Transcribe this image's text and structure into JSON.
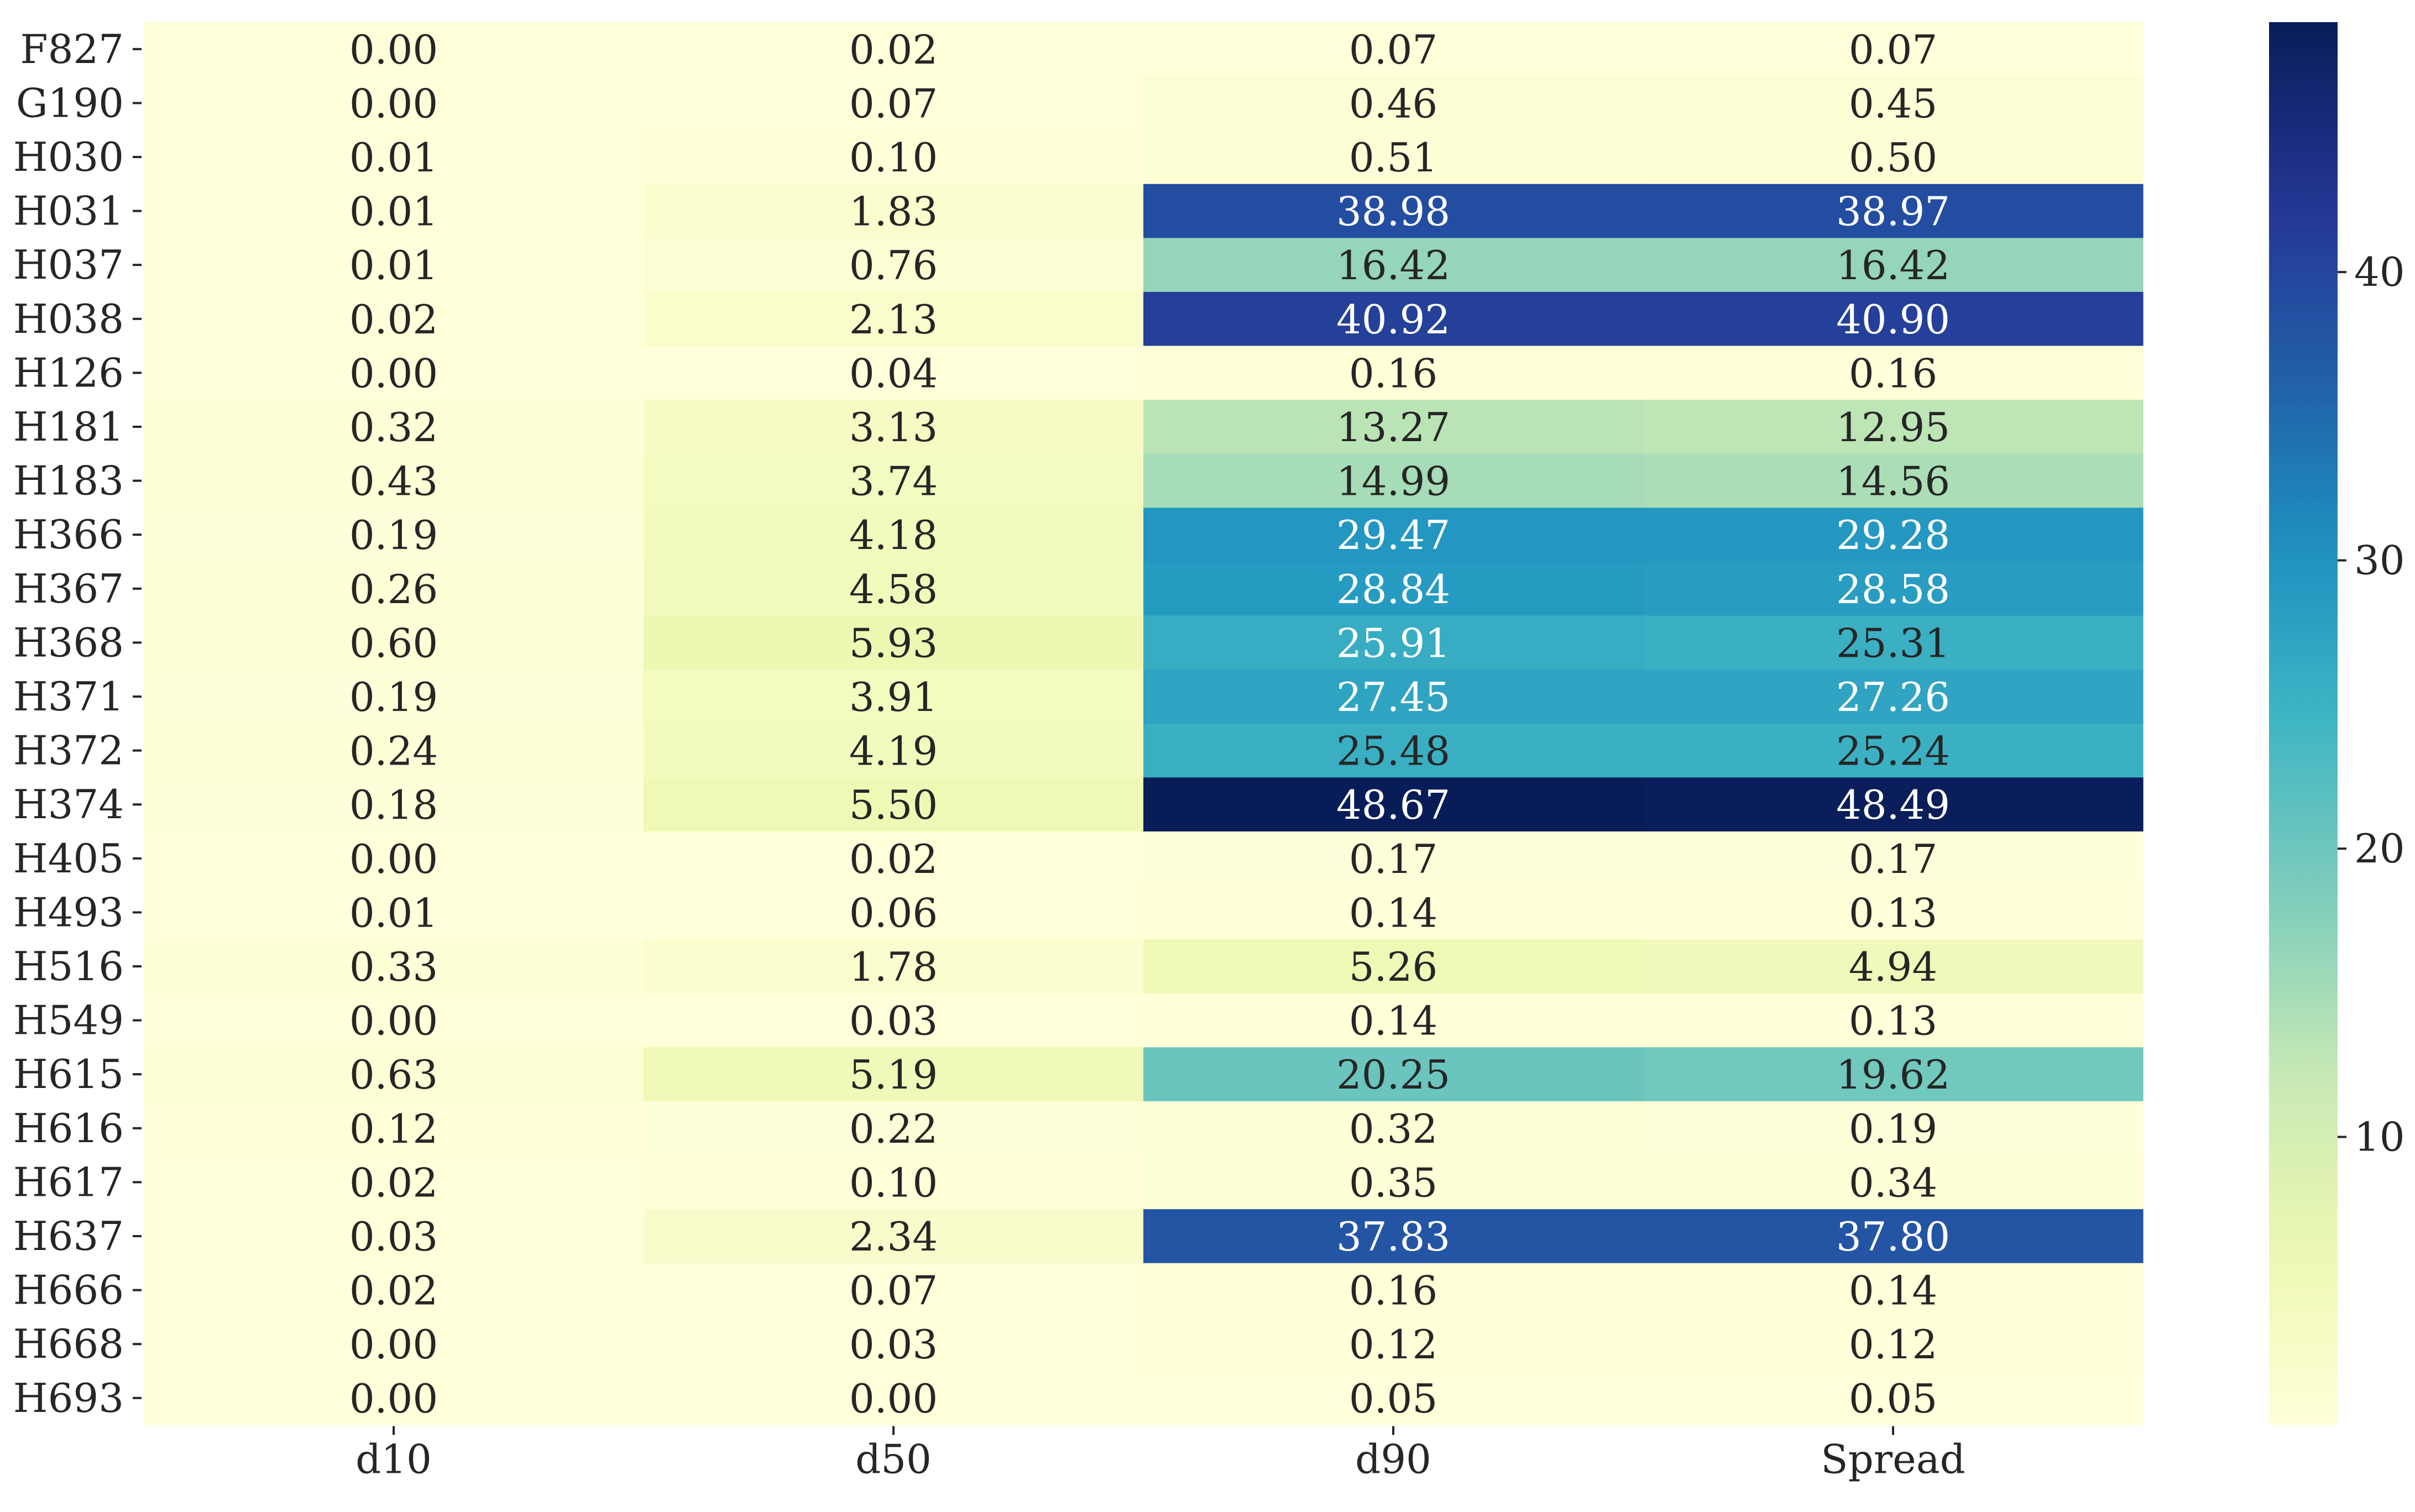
{
  "chart_data": {
    "type": "heatmap",
    "title": "",
    "xlabel": "",
    "ylabel": "",
    "columns": [
      "d10",
      "d50",
      "d90",
      "Spread"
    ],
    "rows": [
      "F827",
      "G190",
      "H030",
      "H031",
      "H037",
      "H038",
      "H126",
      "H181",
      "H183",
      "H366",
      "H367",
      "H368",
      "H371",
      "H372",
      "H374",
      "H405",
      "H493",
      "H516",
      "H549",
      "H615",
      "H616",
      "H617",
      "H637",
      "H666",
      "H668",
      "H693"
    ],
    "values": [
      [
        0.0,
        0.02,
        0.07,
        0.07
      ],
      [
        0.0,
        0.07,
        0.46,
        0.45
      ],
      [
        0.01,
        0.1,
        0.51,
        0.5
      ],
      [
        0.01,
        1.83,
        38.98,
        38.97
      ],
      [
        0.01,
        0.76,
        16.42,
        16.42
      ],
      [
        0.02,
        2.13,
        40.92,
        40.9
      ],
      [
        0.0,
        0.04,
        0.16,
        0.16
      ],
      [
        0.32,
        3.13,
        13.27,
        12.95
      ],
      [
        0.43,
        3.74,
        14.99,
        14.56
      ],
      [
        0.19,
        4.18,
        29.47,
        29.28
      ],
      [
        0.26,
        4.58,
        28.84,
        28.58
      ],
      [
        0.6,
        5.93,
        25.91,
        25.31
      ],
      [
        0.19,
        3.91,
        27.45,
        27.26
      ],
      [
        0.24,
        4.19,
        25.48,
        25.24
      ],
      [
        0.18,
        5.5,
        48.67,
        48.49
      ],
      [
        0.0,
        0.02,
        0.17,
        0.17
      ],
      [
        0.01,
        0.06,
        0.14,
        0.13
      ],
      [
        0.33,
        1.78,
        5.26,
        4.94
      ],
      [
        0.0,
        0.03,
        0.14,
        0.13
      ],
      [
        0.63,
        5.19,
        20.25,
        19.62
      ],
      [
        0.12,
        0.22,
        0.32,
        0.19
      ],
      [
        0.02,
        0.1,
        0.35,
        0.34
      ],
      [
        0.03,
        2.34,
        37.83,
        37.8
      ],
      [
        0.02,
        0.07,
        0.16,
        0.14
      ],
      [
        0.0,
        0.03,
        0.12,
        0.12
      ],
      [
        0.0,
        0.0,
        0.05,
        0.05
      ]
    ],
    "colormap": "YlGnBu",
    "vmin": 0,
    "vmax": 48.67,
    "colorbar_ticks": [
      10,
      20,
      30,
      40
    ],
    "grid": false,
    "colorbar_position": "right"
  }
}
